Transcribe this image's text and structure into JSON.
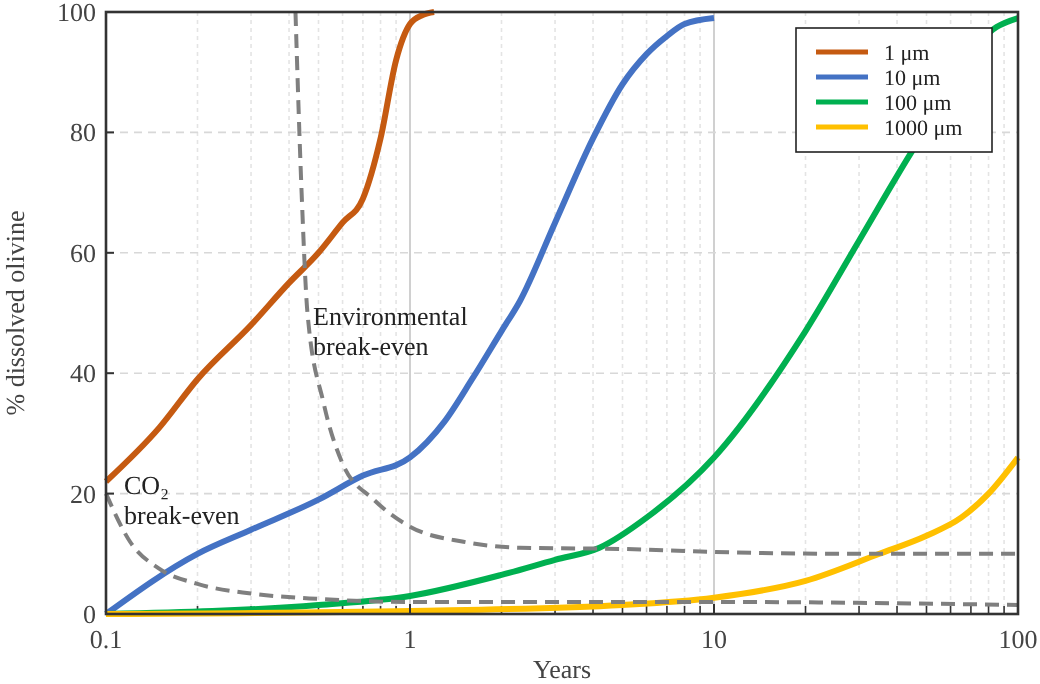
{
  "chart_data": {
    "type": "line",
    "xlabel": "Years",
    "ylabel": "% dissolved olivine",
    "log": "x",
    "xlim": [
      0.1,
      100
    ],
    "xticks": [
      0.1,
      1,
      10,
      100
    ],
    "ylim": [
      0,
      100
    ],
    "yticks": [
      0,
      20,
      40,
      60,
      80,
      100
    ],
    "grid": true,
    "legend": "top right",
    "series": [
      {
        "name": "1 μm",
        "color": "#c55a11",
        "x": [
          0.1,
          0.15,
          0.2,
          0.3,
          0.4,
          0.5,
          0.6,
          0.7,
          0.8,
          0.9,
          1.0,
          1.1,
          1.2
        ],
        "values": [
          22,
          31,
          39,
          48,
          55,
          60,
          65,
          69,
          79,
          92,
          98,
          99.5,
          100
        ]
      },
      {
        "name": "10 μm",
        "color": "#4472c4",
        "x": [
          0.1,
          0.2,
          0.3,
          0.5,
          0.7,
          1,
          1.3,
          1.6,
          2,
          2.3,
          3,
          4,
          5,
          6,
          7,
          8,
          10
        ],
        "values": [
          0,
          10,
          14,
          19,
          23,
          26,
          32,
          39,
          47,
          52,
          65,
          79,
          88,
          93,
          96,
          98,
          99
        ]
      },
      {
        "name": "100 μm",
        "color": "#00b050",
        "x": [
          0.1,
          0.5,
          1,
          2,
          3,
          4.2,
          6,
          10,
          20,
          30,
          45,
          85,
          100
        ],
        "values": [
          0,
          1.5,
          3,
          6.5,
          9,
          11,
          16,
          26,
          47,
          62,
          77,
          97.5,
          99
        ]
      },
      {
        "name": "1000 μm",
        "color": "#ffc000",
        "x": [
          0.1,
          1,
          5,
          10,
          20,
          35,
          50,
          65,
          80,
          100
        ],
        "values": [
          0,
          0.5,
          1.5,
          2.7,
          5.5,
          10,
          13,
          16,
          20,
          26
        ]
      },
      {
        "color": "#7f7f7f",
        "line_style": "dashed",
        "x": [
          0.42,
          0.44,
          0.46,
          0.52,
          0.6,
          0.76,
          1,
          1.5,
          2.3,
          5,
          10,
          30,
          100
        ],
        "values": [
          100,
          70,
          50,
          35,
          25,
          19,
          14.5,
          12,
          11,
          10.8,
          10.3,
          10,
          10
        ]
      },
      {
        "color": "#7f7f7f",
        "line_style": "dashed",
        "x": [
          0.1,
          0.12,
          0.15,
          0.2,
          0.3,
          0.5,
          1,
          10,
          100
        ],
        "values": [
          20,
          12,
          7.5,
          5,
          3.4,
          2.5,
          2,
          2,
          1.5
        ]
      }
    ],
    "annotations": [
      {
        "text": "Environmental break-even",
        "x": 0.48,
        "y": 48
      },
      "CO₂ break-even"
    ]
  }
}
